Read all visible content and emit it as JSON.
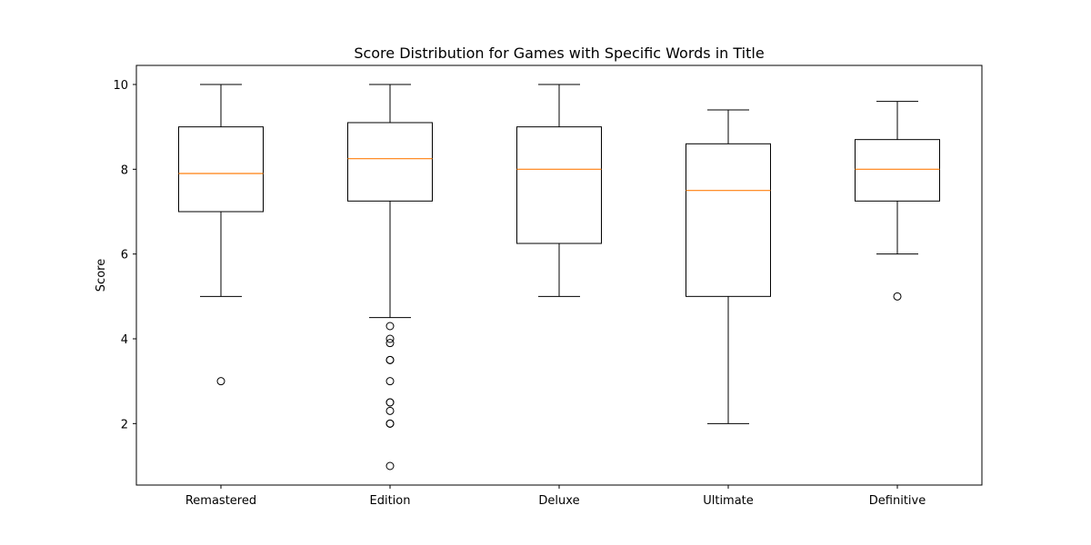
{
  "chart_data": {
    "type": "box",
    "title": "Score Distribution for Games with Specific Words in Title",
    "xlabel": "",
    "ylabel": "Score",
    "ylim": [
      0.55,
      10.45
    ],
    "yticks": [
      2,
      4,
      6,
      8,
      10
    ],
    "grid": false,
    "colors": {
      "box": "#000000",
      "median": "#ff7f0e",
      "outlier": "#000000"
    },
    "categories": [
      "Remastered",
      "Edition",
      "Deluxe",
      "Ultimate",
      "Definitive"
    ],
    "boxes": [
      {
        "category": "Remastered",
        "whisker_low": 5.0,
        "q1": 7.0,
        "median": 7.9,
        "q3": 9.0,
        "whisker_high": 10.0,
        "outliers": [
          3.0
        ]
      },
      {
        "category": "Edition",
        "whisker_low": 4.5,
        "q1": 7.25,
        "median": 8.25,
        "q3": 9.1,
        "whisker_high": 10.0,
        "outliers": [
          4.3,
          4.0,
          3.9,
          3.5,
          3.5,
          3.0,
          2.5,
          2.5,
          2.3,
          2.0,
          2.0,
          1.0
        ]
      },
      {
        "category": "Deluxe",
        "whisker_low": 5.0,
        "q1": 6.25,
        "median": 8.0,
        "q3": 9.0,
        "whisker_high": 10.0,
        "outliers": []
      },
      {
        "category": "Ultimate",
        "whisker_low": 2.0,
        "q1": 5.0,
        "median": 7.5,
        "q3": 8.6,
        "whisker_high": 9.4,
        "outliers": []
      },
      {
        "category": "Definitive",
        "whisker_low": 6.0,
        "q1": 7.25,
        "median": 8.0,
        "q3": 8.7,
        "whisker_high": 9.6,
        "outliers": [
          5.0
        ]
      }
    ]
  }
}
